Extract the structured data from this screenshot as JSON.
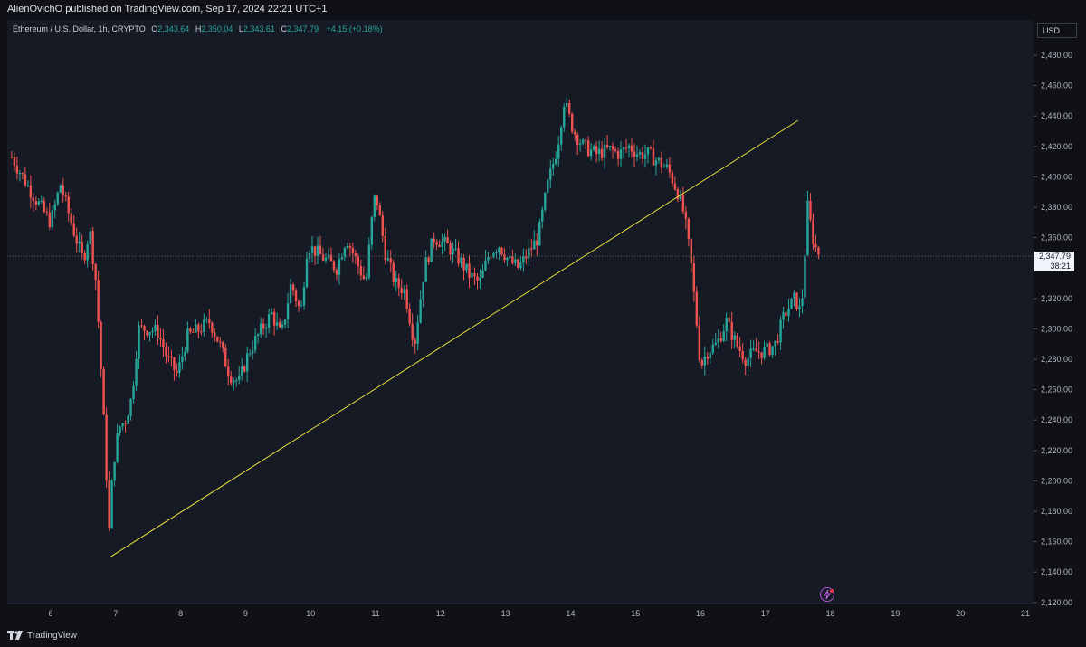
{
  "header": {
    "published_line": "AlienOvichO published on TradingView.com, Sep 17, 2024 22:21 UTC+1"
  },
  "legend": {
    "symbol": "Ethereum / U.S. Dollar, 1h, CRYPTO",
    "o_label": "O",
    "o_value": "2,343.64",
    "h_label": "H",
    "h_value": "2,350.04",
    "l_label": "L",
    "l_value": "2,343.61",
    "c_label": "C",
    "c_value": "2,347.79",
    "change": "+4.15 (+0.18%)"
  },
  "currency": "USD",
  "last_price": {
    "value": "2,347.79",
    "countdown": "38:21"
  },
  "brand": "TradingView",
  "colors": {
    "up": "#26a69a",
    "down": "#ef5350",
    "trendline": "#e8e13a",
    "background": "#161a25",
    "text": "#b2b5be"
  },
  "chart_data": {
    "type": "candlestick",
    "title": "Ethereum / U.S. Dollar, 1h, CRYPTO",
    "xlabel": "",
    "ylabel": "",
    "x_ticks": [
      "6",
      "7",
      "8",
      "9",
      "10",
      "11",
      "12",
      "13",
      "14",
      "15",
      "16",
      "17",
      "18",
      "19",
      "20",
      "21"
    ],
    "x_range_days": [
      5.4,
      21.0
    ],
    "y_ticks": [
      "2,120.00",
      "2,140.00",
      "2,160.00",
      "2,180.00",
      "2,200.00",
      "2,220.00",
      "2,240.00",
      "2,260.00",
      "2,280.00",
      "2,300.00",
      "2,320.00",
      "2,340.00",
      "2,360.00",
      "2,380.00",
      "2,400.00",
      "2,420.00",
      "2,440.00",
      "2,460.00",
      "2,480.00"
    ],
    "ylim": [
      2114,
      2487
    ],
    "last_close": 2347.79,
    "trendline": {
      "start": {
        "day": 6.92,
        "price": 2150
      },
      "end": {
        "day": 17.5,
        "price": 2437
      }
    },
    "price_path": [
      [
        5.4,
        2413
      ],
      [
        5.7,
        2390
      ],
      [
        6.0,
        2370
      ],
      [
        6.15,
        2395
      ],
      [
        6.35,
        2365
      ],
      [
        6.5,
        2345
      ],
      [
        6.6,
        2365
      ],
      [
        6.7,
        2330
      ],
      [
        6.78,
        2270
      ],
      [
        6.84,
        2220
      ],
      [
        6.9,
        2167
      ],
      [
        6.96,
        2210
      ],
      [
        7.05,
        2235
      ],
      [
        7.15,
        2240
      ],
      [
        7.25,
        2255
      ],
      [
        7.35,
        2300
      ],
      [
        7.5,
        2300
      ],
      [
        7.65,
        2298
      ],
      [
        7.8,
        2280
      ],
      [
        7.95,
        2270
      ],
      [
        8.1,
        2295
      ],
      [
        8.3,
        2300
      ],
      [
        8.45,
        2305
      ],
      [
        8.6,
        2290
      ],
      [
        8.75,
        2270
      ],
      [
        8.9,
        2265
      ],
      [
        9.05,
        2285
      ],
      [
        9.25,
        2300
      ],
      [
        9.4,
        2310
      ],
      [
        9.55,
        2295
      ],
      [
        9.7,
        2330
      ],
      [
        9.85,
        2310
      ],
      [
        9.95,
        2355
      ],
      [
        10.1,
        2350
      ],
      [
        10.25,
        2345
      ],
      [
        10.4,
        2340
      ],
      [
        10.55,
        2360
      ],
      [
        10.7,
        2345
      ],
      [
        10.85,
        2330
      ],
      [
        10.95,
        2375
      ],
      [
        11.0,
        2390
      ],
      [
        11.15,
        2350
      ],
      [
        11.3,
        2330
      ],
      [
        11.45,
        2325
      ],
      [
        11.6,
        2290
      ],
      [
        11.75,
        2340
      ],
      [
        11.9,
        2360
      ],
      [
        12.1,
        2355
      ],
      [
        12.3,
        2345
      ],
      [
        12.45,
        2335
      ],
      [
        12.6,
        2330
      ],
      [
        12.75,
        2350
      ],
      [
        12.9,
        2355
      ],
      [
        13.05,
        2345
      ],
      [
        13.2,
        2340
      ],
      [
        13.35,
        2350
      ],
      [
        13.5,
        2360
      ],
      [
        13.65,
        2395
      ],
      [
        13.8,
        2420
      ],
      [
        13.9,
        2450
      ],
      [
        14.05,
        2430
      ],
      [
        14.2,
        2420
      ],
      [
        14.4,
        2415
      ],
      [
        14.6,
        2418
      ],
      [
        14.75,
        2415
      ],
      [
        14.9,
        2420
      ],
      [
        15.05,
        2415
      ],
      [
        15.2,
        2415
      ],
      [
        15.35,
        2410
      ],
      [
        15.5,
        2405
      ],
      [
        15.65,
        2390
      ],
      [
        15.75,
        2375
      ],
      [
        15.85,
        2345
      ],
      [
        15.95,
        2300
      ],
      [
        16.0,
        2275
      ],
      [
        16.1,
        2285
      ],
      [
        16.25,
        2290
      ],
      [
        16.4,
        2305
      ],
      [
        16.55,
        2290
      ],
      [
        16.7,
        2280
      ],
      [
        16.85,
        2285
      ],
      [
        17.0,
        2285
      ],
      [
        17.15,
        2290
      ],
      [
        17.3,
        2310
      ],
      [
        17.45,
        2320
      ],
      [
        17.55,
        2310
      ],
      [
        17.65,
        2380
      ],
      [
        17.75,
        2355
      ],
      [
        17.85,
        2347.79
      ]
    ]
  }
}
